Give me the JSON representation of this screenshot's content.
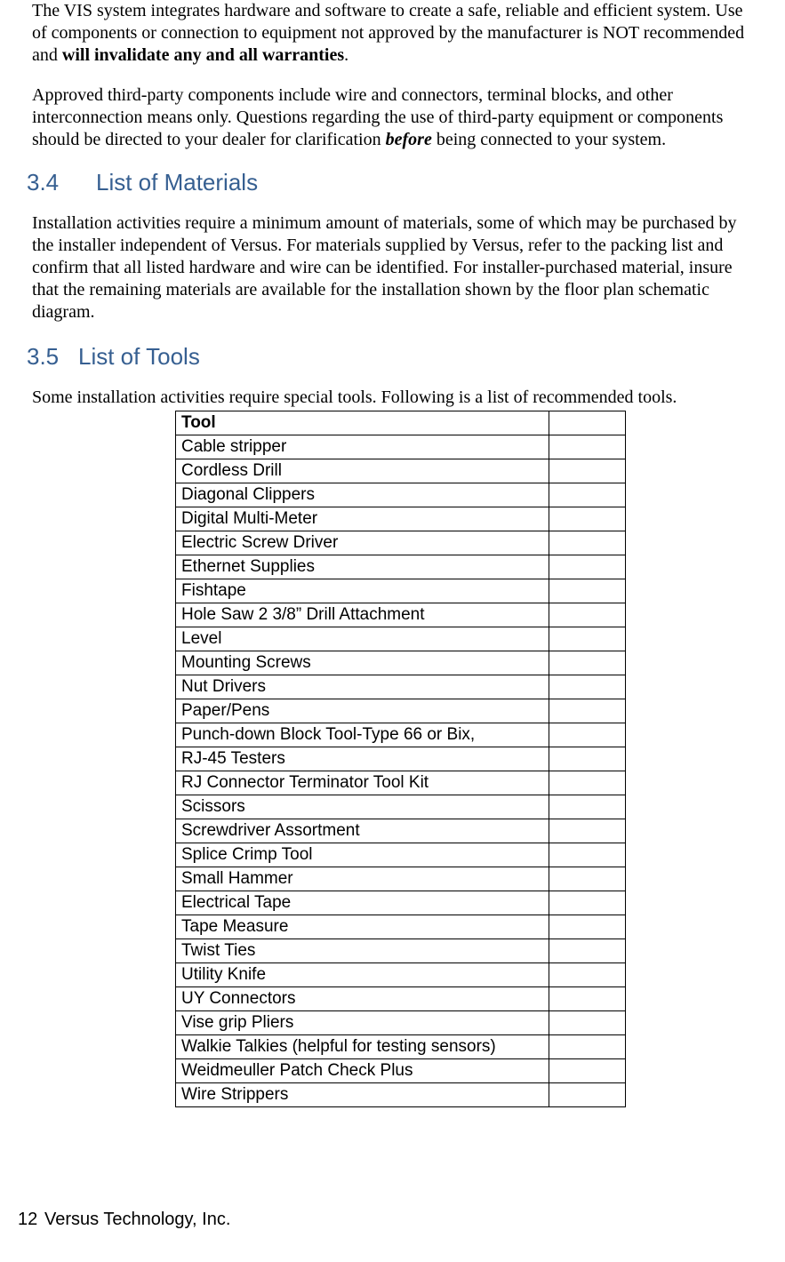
{
  "intro": {
    "para1_a": "The VIS system integrates hardware and software to create a safe, reliable and efficient system. Use of components or connection to equipment not approved by the manufacturer is NOT recommended and ",
    "para1_bold": "will invalidate any and all warranties",
    "para1_b": ".",
    "para2_a": "Approved third-party components include wire and connectors, terminal blocks, and other interconnection means only. Questions regarding the use of third-party equipment or components should be directed to your dealer for clarification ",
    "para2_emph": "before",
    "para2_b": " being connected to your system."
  },
  "section34": {
    "number": "3.4",
    "title": "List of Materials",
    "body": "Installation activities require a minimum amount of materials, some of which may be purchased by the installer independent of Versus. For materials supplied by Versus, refer to the packing list and confirm that all listed hardware and wire can be identified. For installer-purchased material, insure that the remaining materials are available for the installation shown by the floor plan schematic diagram."
  },
  "section35": {
    "number": "3.5",
    "title": "List of Tools",
    "body": "Some installation activities require special tools. Following is a list of recommended tools."
  },
  "tools_table": {
    "header": "Tool",
    "rows": [
      "Cable stripper",
      "Cordless Drill",
      "Diagonal Clippers",
      "Digital Multi-Meter",
      "Electric Screw Driver",
      "Ethernet Supplies",
      "Fishtape",
      "Hole Saw 2 3/8” Drill Attachment",
      "Level",
      "Mounting Screws",
      "Nut Drivers",
      "Paper/Pens",
      "Punch-down Block Tool-Type 66 or Bix,",
      "RJ-45 Testers",
      "RJ Connector Terminator Tool Kit",
      "Scissors",
      "Screwdriver Assortment",
      "Splice Crimp Tool",
      "Small Hammer",
      "Electrical Tape",
      "Tape Measure",
      "Twist Ties",
      "Utility Knife",
      "UY Connectors",
      "Vise grip Pliers",
      "Walkie Talkies (helpful for testing sensors)",
      "Weidmeuller Patch Check Plus",
      "Wire Strippers"
    ]
  },
  "footer": {
    "page": "12",
    "company": "Versus Technology, Inc."
  },
  "colors": {
    "heading": "#365f91",
    "text": "#000000",
    "background": "#ffffff",
    "table_border": "#000000"
  }
}
